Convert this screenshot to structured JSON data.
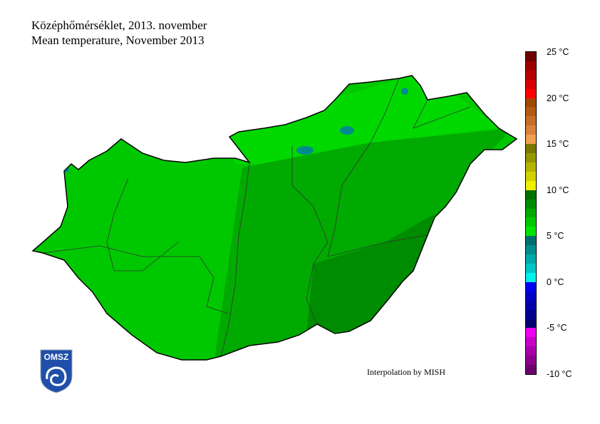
{
  "title_hu": "Középhőmérséklet, 2013. november",
  "title_en": "Mean temperature, November 2013",
  "credit": "Interpolation by MISH",
  "logo_text": "OMSZ",
  "colorbar": {
    "unit": "°C",
    "min": -10,
    "max": 25,
    "step": 1,
    "tick_labels": [
      "25 °C",
      "20 °C",
      "15 °C",
      "10 °C",
      "5 °C",
      "0 °C",
      "-5 °C",
      "-10 °C"
    ],
    "colors_top_to_bottom": [
      "#6e0000",
      "#9c0000",
      "#b80000",
      "#d80000",
      "#ff0000",
      "#a04800",
      "#b45a14",
      "#c46e28",
      "#d8823c",
      "#f0a050",
      "#787800",
      "#969600",
      "#b4b400",
      "#d2d200",
      "#f0f000",
      "#007000",
      "#008c00",
      "#00aa00",
      "#00c800",
      "#00e600",
      "#006e6e",
      "#008c8c",
      "#00aaaa",
      "#00c8c8",
      "#00f0f0",
      "#0000f0",
      "#0000c8",
      "#0000aa",
      "#00008c",
      "#00006e",
      "#f000f0",
      "#c800c8",
      "#aa00aa",
      "#8c008c",
      "#6e006e"
    ]
  },
  "map": {
    "region": "Hungary",
    "dominant_range": "5-9 °C",
    "colors": {
      "west": "#00c800",
      "north": "#00e600",
      "east": "#00aa00",
      "southeast": "#008c00",
      "peaks": "#008c8c"
    }
  }
}
